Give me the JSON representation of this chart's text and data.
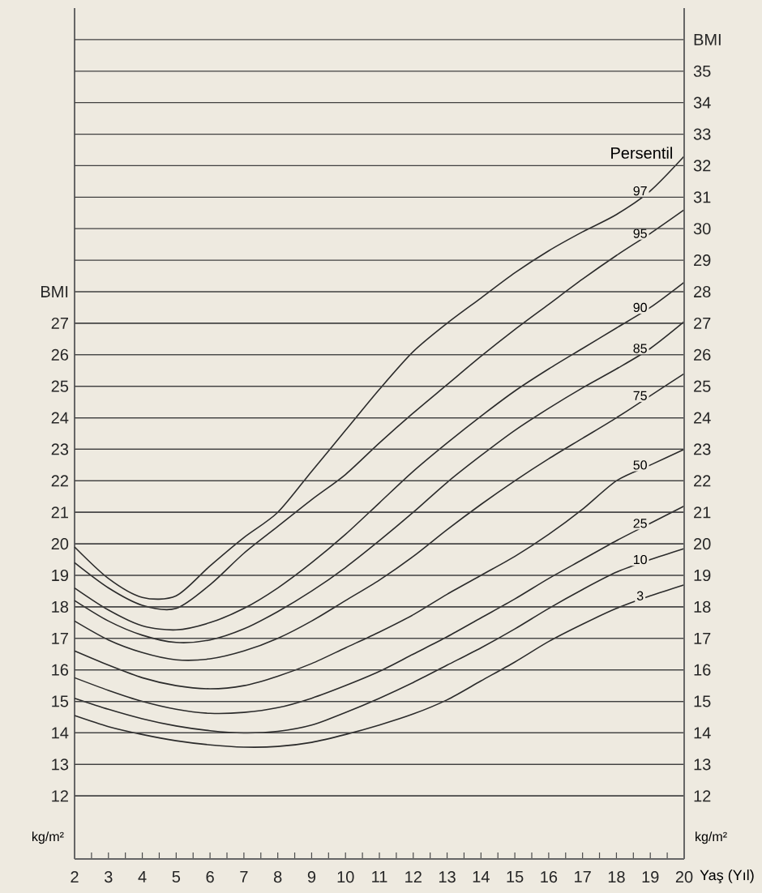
{
  "chart_data": {
    "type": "line",
    "xlabel": "Yaş (Yıl)",
    "ylabel": "kg/m²",
    "y2label": "kg/m²",
    "annotations": [
      "Persentil"
    ],
    "x": [
      2,
      3,
      4,
      5,
      6,
      7,
      8,
      9,
      10,
      11,
      12,
      13,
      14,
      15,
      16,
      17,
      18,
      19,
      20
    ],
    "series": [
      {
        "name": "3",
        "color": "#2b2b2b",
        "values": [
          14.55,
          14.2,
          13.95,
          13.75,
          13.62,
          13.55,
          13.57,
          13.7,
          13.95,
          14.25,
          14.6,
          15.05,
          15.65,
          16.25,
          16.9,
          17.45,
          17.95,
          18.35,
          18.7
        ]
      },
      {
        "name": "10",
        "color": "#2b2b2b",
        "values": [
          15.1,
          14.75,
          14.45,
          14.22,
          14.07,
          14.0,
          14.05,
          14.25,
          14.65,
          15.1,
          15.6,
          16.15,
          16.7,
          17.3,
          17.95,
          18.55,
          19.1,
          19.5,
          19.85
        ]
      },
      {
        "name": "25",
        "color": "#2b2b2b",
        "values": [
          15.75,
          15.35,
          15.0,
          14.75,
          14.62,
          14.65,
          14.8,
          15.1,
          15.5,
          15.95,
          16.5,
          17.05,
          17.65,
          18.25,
          18.9,
          19.5,
          20.1,
          20.65,
          21.2
        ]
      },
      {
        "name": "50",
        "color": "#2b2b2b",
        "values": [
          16.6,
          16.15,
          15.75,
          15.5,
          15.4,
          15.5,
          15.8,
          16.2,
          16.7,
          17.2,
          17.75,
          18.4,
          19.0,
          19.6,
          20.3,
          21.1,
          22.0,
          22.5,
          23.0
        ]
      },
      {
        "name": "75",
        "color": "#2b2b2b",
        "values": [
          17.55,
          16.95,
          16.55,
          16.32,
          16.35,
          16.6,
          17.0,
          17.55,
          18.2,
          18.85,
          19.6,
          20.45,
          21.25,
          22.0,
          22.7,
          23.35,
          24.0,
          24.7,
          25.4
        ]
      },
      {
        "name": "85",
        "color": "#2b2b2b",
        "values": [
          18.2,
          17.55,
          17.1,
          16.87,
          16.95,
          17.3,
          17.85,
          18.5,
          19.25,
          20.1,
          21.0,
          21.95,
          22.8,
          23.6,
          24.3,
          24.95,
          25.55,
          26.2,
          27.05
        ]
      },
      {
        "name": "90",
        "color": "#2b2b2b",
        "values": [
          18.6,
          17.9,
          17.4,
          17.27,
          17.5,
          17.95,
          18.6,
          19.4,
          20.3,
          21.3,
          22.3,
          23.2,
          24.05,
          24.85,
          25.55,
          26.2,
          26.85,
          27.5,
          28.3
        ]
      },
      {
        "name": "95",
        "color": "#2b2b2b",
        "values": [
          19.4,
          18.6,
          18.05,
          17.95,
          18.7,
          19.7,
          20.55,
          21.4,
          22.2,
          23.2,
          24.15,
          25.05,
          25.95,
          26.8,
          27.6,
          28.4,
          29.15,
          29.85,
          30.6
        ]
      },
      {
        "name": "97",
        "color": "#2b2b2b",
        "values": [
          19.9,
          18.9,
          18.3,
          18.35,
          19.3,
          20.2,
          21.0,
          22.3,
          23.6,
          24.9,
          26.1,
          27.0,
          27.8,
          28.6,
          29.3,
          29.9,
          30.45,
          31.2,
          32.3
        ]
      }
    ],
    "xlim": [
      2,
      20
    ],
    "xticks": [
      2,
      {
        "value": 2.5,
        "label": null
      },
      3,
      {
        "value": 3.5,
        "label": null
      },
      4,
      {
        "value": 4.5,
        "label": null
      },
      5,
      {
        "value": 5.5,
        "label": null
      },
      6,
      {
        "value": 6.5,
        "label": null
      },
      7,
      {
        "value": 7.5,
        "label": null
      },
      8,
      {
        "value": 8.5,
        "label": null
      },
      9,
      {
        "value": 9.5,
        "label": null
      },
      10,
      {
        "value": 10.5,
        "label": null
      },
      11,
      {
        "value": 11.5,
        "label": null
      },
      12,
      {
        "value": 12.5,
        "label": null
      },
      13,
      {
        "value": 13.5,
        "label": null
      },
      14,
      {
        "value": 14.5,
        "label": null
      },
      15,
      {
        "value": 15.5,
        "label": null
      },
      16,
      {
        "value": 16.5,
        "label": null
      },
      17,
      {
        "value": 17.5,
        "label": null
      },
      18,
      {
        "value": 18.5,
        "label": null
      },
      19,
      {
        "value": 19.5,
        "label": null
      },
      20
    ],
    "ylim": [
      10,
      37
    ],
    "yticks": [
      12,
      13,
      14,
      15,
      16,
      17,
      18,
      19,
      20,
      21,
      22,
      23,
      24,
      25,
      26,
      27,
      {
        "value": 28,
        "label": "BMI"
      }
    ],
    "y2lim": [
      10,
      37
    ],
    "y2ticks": [
      12,
      13,
      14,
      15,
      16,
      17,
      18,
      19,
      20,
      21,
      22,
      23,
      24,
      25,
      26,
      27,
      28,
      29,
      30,
      31,
      32,
      33,
      34,
      35,
      {
        "value": 36,
        "label": "BMI"
      }
    ],
    "grid": "y",
    "marker": "none",
    "line_style": "solid"
  }
}
